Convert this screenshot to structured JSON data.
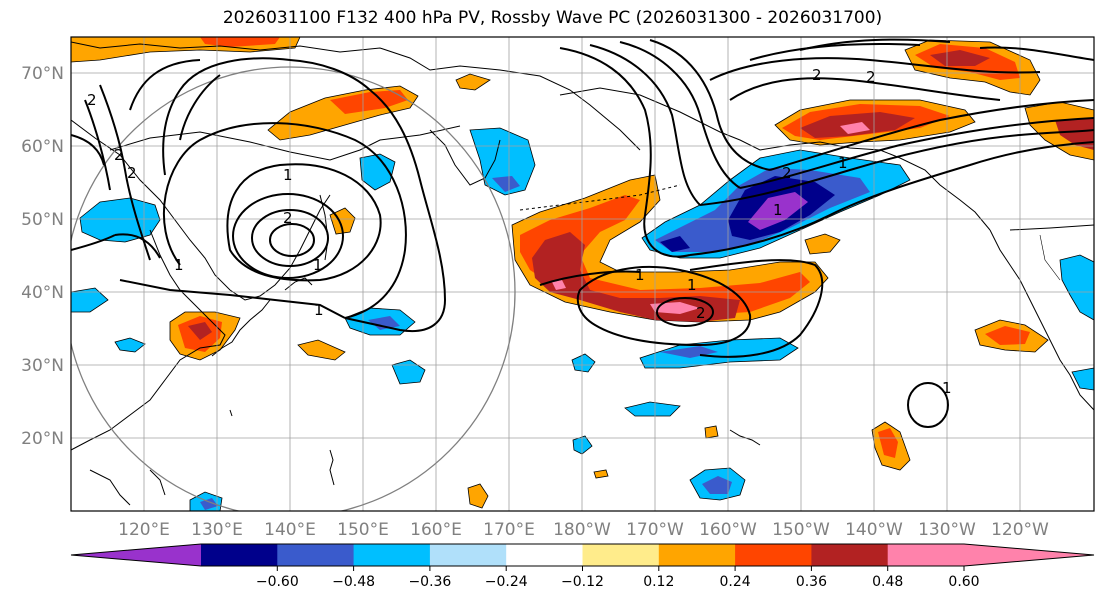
{
  "title": "2026031100 F132 400 hPa PV, Rossby Wave PC (2026031300 - 2026031700)",
  "latitude_labels": [
    "70°N",
    "60°N",
    "50°N",
    "40°N",
    "30°N",
    "20°N"
  ],
  "longitude_labels": [
    "120°E",
    "130°E",
    "140°E",
    "150°E",
    "160°E",
    "170°E",
    "180°W",
    "170°W",
    "160°W",
    "150°W",
    "140°W",
    "130°W",
    "120°W"
  ],
  "colorbar": {
    "tick_labels": [
      "−0.60",
      "−0.48",
      "−0.36",
      "−0.24",
      "−0.12",
      "0.12",
      "0.24",
      "0.36",
      "0.48",
      "0.60"
    ],
    "colors": [
      "#9932cc",
      "#00008b",
      "#3a5bcc",
      "#00bfff",
      "#b0e0fa",
      "#ffffff",
      "#ffec8b",
      "#ffa500",
      "#ff4500",
      "#b22222",
      "#ff82ab"
    ]
  },
  "contour_labels": [
    "2",
    "2",
    "2",
    "1",
    "2",
    "1",
    "1",
    "1",
    "2",
    "1",
    "2",
    "2",
    "1",
    "1",
    "1",
    "2",
    "1"
  ],
  "colors": {
    "land_outline": "#000000",
    "grid": "#a0a0a0",
    "circle": "#808080"
  }
}
